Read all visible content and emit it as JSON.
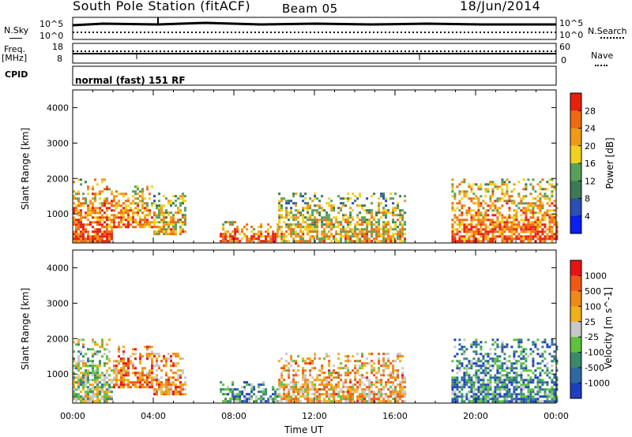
{
  "header": {
    "station": "South Pole Station (fitACF)",
    "beam": "Beam 05",
    "date": "18/Jun/2014"
  },
  "top_panels": {
    "nsky_label": "N.Sky",
    "nsky_ticks": [
      "10^5",
      "10^0"
    ],
    "nsearch_label": "N.Search",
    "nsearch_ticks": [
      "10^5",
      "10^0"
    ],
    "freq_label": "Freq.",
    "freq_unit": "[MHz]",
    "freq_ticks": [
      "18",
      "8"
    ],
    "nave_label": "Nave",
    "nave_ticks": [
      "60",
      "0"
    ],
    "cpid_label": "CPID",
    "cpid_value": "normal (fast) 151 RF"
  },
  "chart_data": [
    {
      "type": "heatmap",
      "panel": "power",
      "ylabel": "Slant Range [km]",
      "yticks": [
        "4000",
        "3000",
        "2000",
        "1000"
      ],
      "ylim": [
        180,
        4500
      ],
      "xlim": [
        0,
        24
      ],
      "colorbar": {
        "label": "Power [dB]",
        "ticks": [
          "28",
          "24",
          "20",
          "16",
          "12",
          "8",
          "4"
        ],
        "range": [
          0,
          32
        ],
        "colors": [
          "#0a20f0",
          "#2a4fb5",
          "#3c7a55",
          "#58a05a",
          "#f0d21e",
          "#f09a14",
          "#ee6a10",
          "#e82010"
        ]
      },
      "echo_regions": [
        {
          "t0": 0.0,
          "t1": 2.0,
          "r0": 200,
          "r1": 2000,
          "level": 0.75
        },
        {
          "t0": 2.0,
          "t1": 4.0,
          "r0": 600,
          "r1": 1800,
          "level": 0.7
        },
        {
          "t0": 4.0,
          "t1": 5.6,
          "r0": 400,
          "r1": 1600,
          "level": 0.55
        },
        {
          "t0": 7.3,
          "t1": 10.2,
          "r0": 200,
          "r1": 800,
          "level": 0.75
        },
        {
          "t0": 10.2,
          "t1": 16.5,
          "r0": 200,
          "r1": 1600,
          "level": 0.55
        },
        {
          "t0": 18.8,
          "t1": 24.0,
          "r0": 200,
          "r1": 2000,
          "level": 0.7
        }
      ]
    },
    {
      "type": "heatmap",
      "panel": "velocity",
      "ylabel": "Slant Range [km]",
      "yticks": [
        "4000",
        "3000",
        "2000",
        "1000"
      ],
      "ylim": [
        180,
        4500
      ],
      "xlim": [
        0,
        24
      ],
      "xticks": [
        "00:00",
        "04:00",
        "08:00",
        "12:00",
        "16:00",
        "20:00",
        "00:00"
      ],
      "xlabel": "Time UT",
      "colorbar": {
        "label": "Velocity [m s^-1]",
        "ticks": [
          "1000",
          "500",
          "100",
          "25",
          "-25",
          "-100",
          "-500",
          "-1000"
        ],
        "colors": [
          "#1e3fbf",
          "#2e6aa0",
          "#3a8a6a",
          "#5cc43c",
          "#c8c8c8",
          "#f0b018",
          "#ee8a18",
          "#ee5a14",
          "#e81414"
        ]
      },
      "echo_regions": [
        {
          "t0": 0.0,
          "t1": 2.0,
          "r0": 200,
          "r1": 2000,
          "level": 0.45
        },
        {
          "t0": 2.0,
          "t1": 4.0,
          "r0": 600,
          "r1": 1800,
          "level": 0.75
        },
        {
          "t0": 4.0,
          "t1": 5.6,
          "r0": 400,
          "r1": 1600,
          "level": 0.7
        },
        {
          "t0": 7.3,
          "t1": 10.2,
          "r0": 200,
          "r1": 800,
          "level": 0.3
        },
        {
          "t0": 10.2,
          "t1": 16.5,
          "r0": 200,
          "r1": 1600,
          "level": 0.65
        },
        {
          "t0": 18.8,
          "t1": 24.0,
          "r0": 200,
          "r1": 2000,
          "level": 0.25
        }
      ]
    }
  ]
}
